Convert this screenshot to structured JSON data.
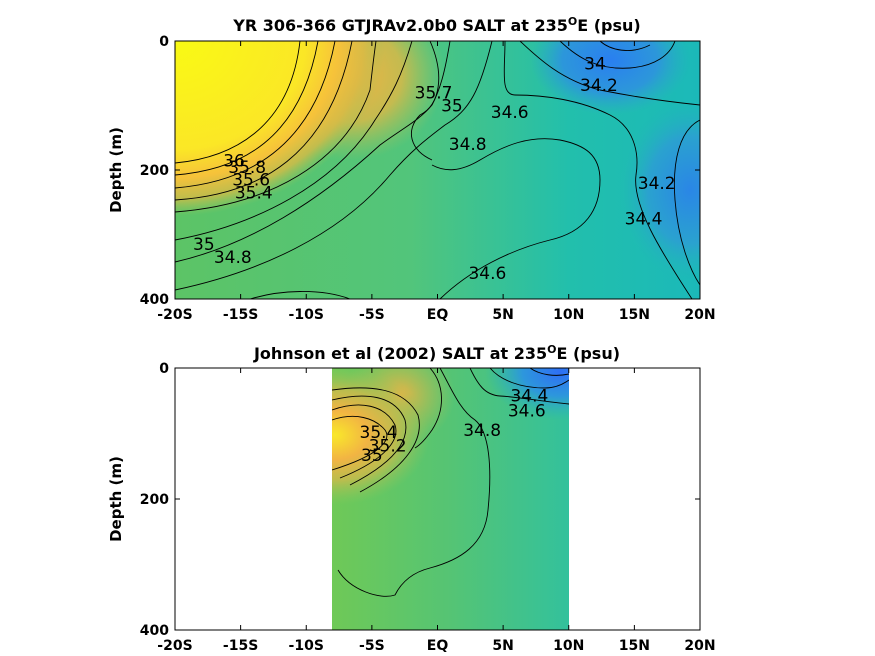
{
  "chart_data": [
    {
      "type": "heatmap",
      "title_prefix": "YR 306-366 GTJRAv2.0b0 SALT at 235",
      "title_sup": "O",
      "title_suffix": "E (psu)",
      "ylabel": "Depth (m)",
      "xlim": [
        -20,
        20
      ],
      "ylim": [
        400,
        0
      ],
      "x_ticks": [
        -20,
        -15,
        -10,
        -5,
        0,
        5,
        10,
        15,
        20
      ],
      "x_tick_labels": [
        "-20S",
        "-15S",
        "-10S",
        "-5S",
        "EQ",
        "5N",
        "10N",
        "15N",
        "20N"
      ],
      "y_ticks": [
        0,
        200,
        400
      ],
      "y_tick_labels": [
        "0",
        "200",
        "400"
      ],
      "data_extent": [
        -20,
        20
      ],
      "contour_labels": [
        {
          "text": "34",
          "x": 12,
          "y": 35
        },
        {
          "text": "34.2",
          "x": 12.3,
          "y": 68
        },
        {
          "text": "35.7",
          "x": -0.3,
          "y": 80
        },
        {
          "text": "35",
          "x": 1.1,
          "y": 100
        },
        {
          "text": "34.6",
          "x": 5.5,
          "y": 110
        },
        {
          "text": "34.8",
          "x": 2.3,
          "y": 160
        },
        {
          "text": "34.2",
          "x": 16.7,
          "y": 220
        },
        {
          "text": "34.4",
          "x": 15.7,
          "y": 275
        },
        {
          "text": "36",
          "x": -15.5,
          "y": 185
        },
        {
          "text": "35.8",
          "x": -14.5,
          "y": 195
        },
        {
          "text": "35.6",
          "x": -14.2,
          "y": 215
        },
        {
          "text": "35.4",
          "x": -14,
          "y": 235
        },
        {
          "text": "35",
          "x": -17.8,
          "y": 315
        },
        {
          "text": "34.8",
          "x": -15.6,
          "y": 335
        },
        {
          "text": "34.6",
          "x": 3.8,
          "y": 360
        }
      ]
    },
    {
      "type": "heatmap",
      "title_prefix": "Johnson et al (2002) SALT at 235",
      "title_sup": "O",
      "title_suffix": "E (psu)",
      "ylabel": "Depth (m)",
      "xlim": [
        -20,
        20
      ],
      "ylim": [
        400,
        0
      ],
      "x_ticks": [
        -20,
        -15,
        -10,
        -5,
        0,
        5,
        10,
        15,
        20
      ],
      "x_tick_labels": [
        "-20S",
        "-15S",
        "-10S",
        "-5S",
        "EQ",
        "5N",
        "10N",
        "15N",
        "20N"
      ],
      "y_ticks": [
        0,
        200,
        400
      ],
      "y_tick_labels": [
        "0",
        "200",
        "400"
      ],
      "data_extent": [
        -8,
        10
      ],
      "contour_labels": [
        {
          "text": "34.4",
          "x": 7,
          "y": 42
        },
        {
          "text": "34.6",
          "x": 6.8,
          "y": 65
        },
        {
          "text": "34.8",
          "x": 3.4,
          "y": 95
        },
        {
          "text": "35.4",
          "x": -4.5,
          "y": 98
        },
        {
          "text": "35.2",
          "x": -3.8,
          "y": 118
        },
        {
          "text": "35",
          "x": -5,
          "y": 133
        }
      ]
    }
  ],
  "colors": {
    "yellow": "#f9fa14",
    "orange": "#f5b53e",
    "green": "#5cc66a",
    "teal": "#1fbfae",
    "blue": "#2c8be0"
  }
}
